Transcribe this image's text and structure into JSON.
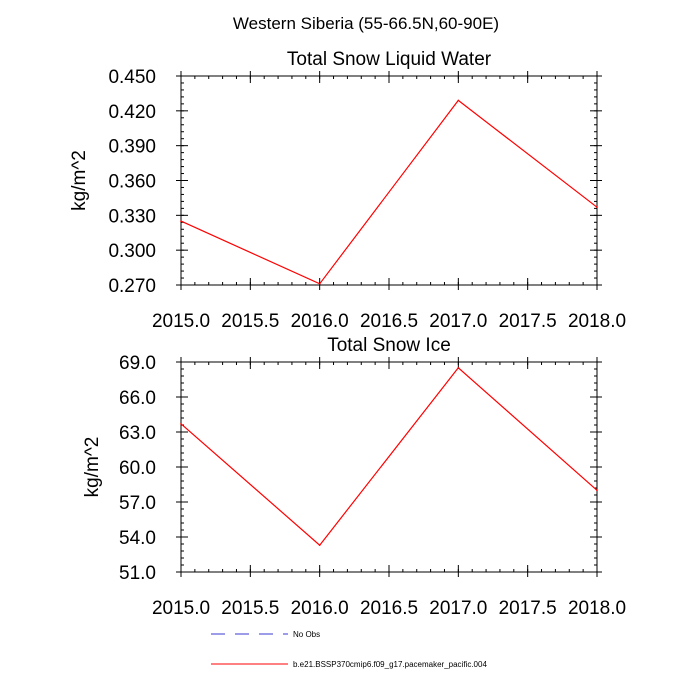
{
  "figure_title": "Western Siberia (55-66.5N,60-90E)",
  "legend": [
    {
      "label": "No Obs",
      "color": "#3a3ad0",
      "style": "dashed"
    },
    {
      "label": "b.e21.BSSP370cmip6.f09_g17.pacemaker_pacific.004",
      "color": "#ff0000",
      "style": "solid"
    }
  ],
  "chart_data": [
    {
      "type": "line",
      "title": "Total Snow Liquid Water",
      "xlabel": "",
      "ylabel": "kg/m^2",
      "xlim": [
        2015.0,
        2018.0
      ],
      "ylim": [
        0.27,
        0.45
      ],
      "xticks": [
        "2015.0",
        "2015.5",
        "2016.0",
        "2016.5",
        "2017.0",
        "2017.5",
        "2018.0"
      ],
      "yticks": [
        "0.270",
        "0.300",
        "0.330",
        "0.360",
        "0.390",
        "0.420",
        "0.450"
      ],
      "grid": false,
      "x": [
        2015.0,
        2016.0,
        2017.0,
        2018.0
      ],
      "series": [
        {
          "color": "#ff0000",
          "values": [
            0.325,
            0.271,
            0.429,
            0.337
          ]
        }
      ]
    },
    {
      "type": "line",
      "title": "Total Snow Ice",
      "xlabel": "",
      "ylabel": "kg/m^2",
      "xlim": [
        2015.0,
        2018.0
      ],
      "ylim": [
        51.0,
        69.0
      ],
      "xticks": [
        "2015.0",
        "2015.5",
        "2016.0",
        "2016.5",
        "2017.0",
        "2017.5",
        "2018.0"
      ],
      "yticks": [
        "51.0",
        "54.0",
        "57.0",
        "60.0",
        "63.0",
        "66.0",
        "69.0"
      ],
      "grid": false,
      "x": [
        2015.0,
        2016.0,
        2017.0,
        2018.0
      ],
      "series": [
        {
          "color": "#ff0000",
          "values": [
            63.7,
            53.3,
            68.5,
            58.0
          ]
        }
      ]
    }
  ]
}
